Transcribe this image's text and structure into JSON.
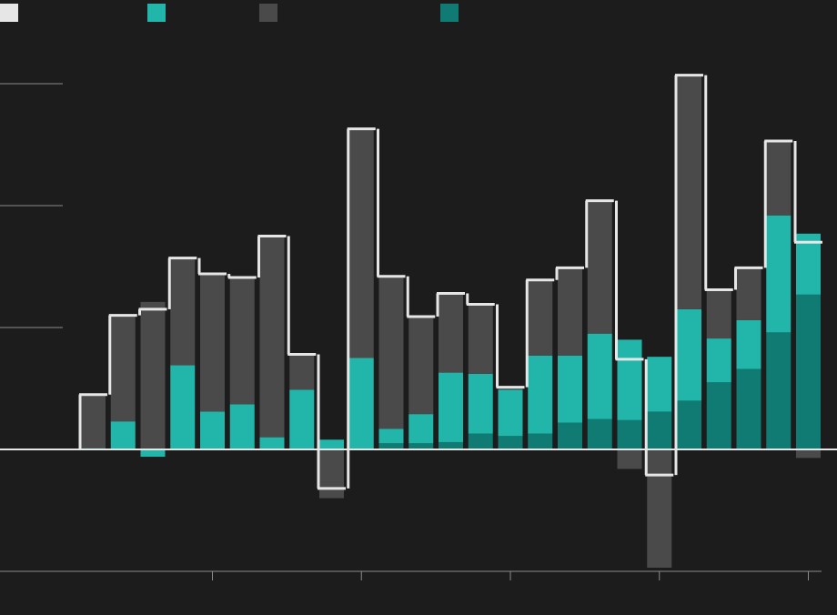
{
  "chart_data": {
    "type": "stacked-bar-step",
    "categories": [
      null,
      null,
      null,
      null,
      null,
      null,
      null,
      null,
      null,
      null,
      null,
      null,
      null,
      null,
      null,
      null,
      null,
      null,
      null,
      null,
      null,
      null,
      null,
      null,
      null
    ],
    "series": [
      {
        "color": "#0f7b73",
        "values": [
          0,
          0,
          0,
          0,
          0,
          0,
          0,
          0,
          0,
          0,
          0.05,
          0.05,
          0.06,
          0.13,
          0.11,
          0.13,
          0.22,
          0.25,
          0.24,
          0.31,
          0.4,
          0.55,
          0.66,
          0.96,
          1.27
        ]
      },
      {
        "color": "#22b5aa",
        "values": [
          0.01,
          0.23,
          -0.06,
          0.69,
          0.31,
          0.37,
          0.1,
          0.49,
          0.08,
          0.75,
          0.12,
          0.24,
          0.57,
          0.49,
          0.38,
          0.64,
          0.55,
          0.7,
          0.66,
          0.45,
          0.75,
          0.36,
          0.4,
          0.96,
          0.5
        ]
      },
      {
        "color": "#4a4a4a",
        "values": [
          0.44,
          0.87,
          1.21,
          0.88,
          1.13,
          1.04,
          1.65,
          0.29,
          -0.4,
          1.88,
          1.25,
          0.8,
          0.65,
          0.57,
          0.02,
          0.62,
          0.72,
          1.09,
          -0.16,
          -0.97,
          1.92,
          0.4,
          0.43,
          0.61,
          -0.07
        ]
      },
      {
        "color": "#e6e6e6",
        "type": "step",
        "values": [
          0.45,
          1.1,
          1.15,
          1.57,
          1.44,
          1.41,
          1.75,
          0.78,
          -0.32,
          2.63,
          1.42,
          1.09,
          1.28,
          1.19,
          0.51,
          1.39,
          1.49,
          2.04,
          0.74,
          -0.21,
          3.07,
          1.31,
          1.49,
          2.53,
          1.7
        ]
      }
    ],
    "ylim": [
      -1,
      3.5
    ],
    "yticks": [
      -1,
      0,
      1,
      2,
      3
    ],
    "grid": true
  }
}
